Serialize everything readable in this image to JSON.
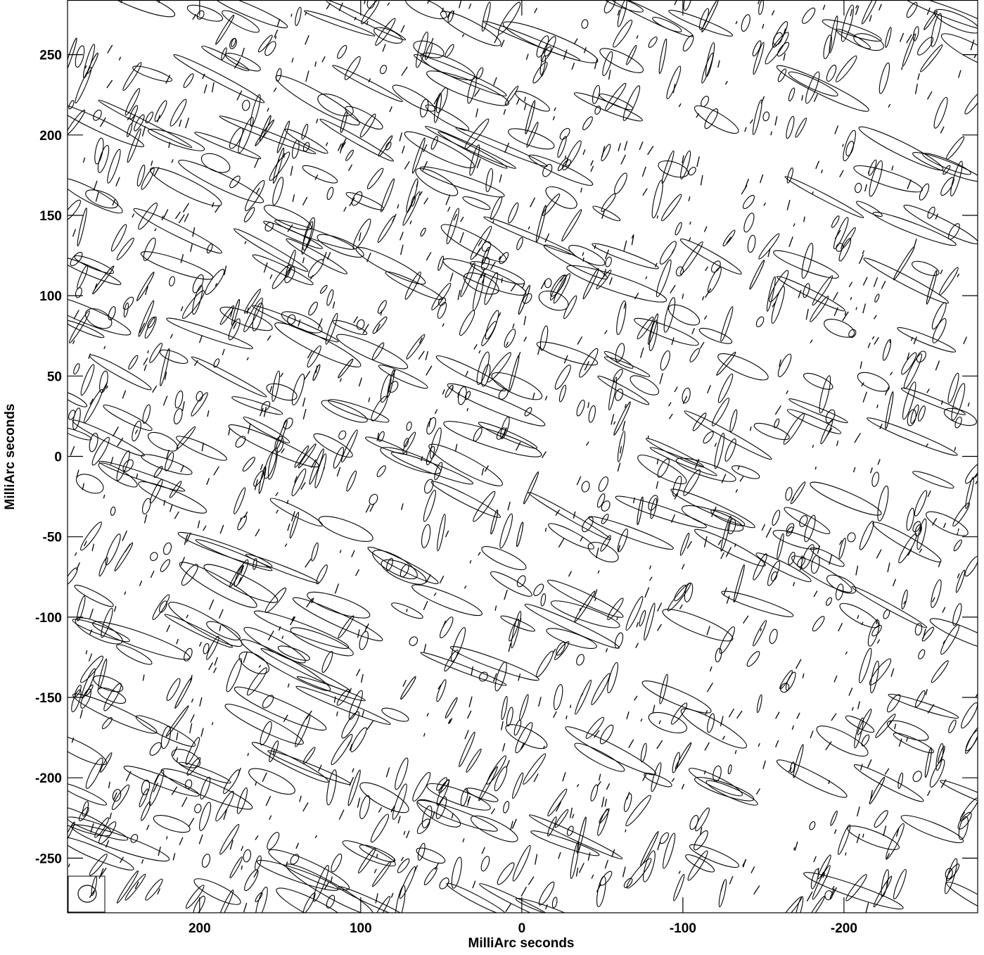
{
  "chart_data": {
    "type": "contour",
    "x_label": "MilliArc seconds",
    "y_label": "MilliArc seconds",
    "xlim": [
      282,
      -283
    ],
    "ylim": [
      -284,
      284
    ],
    "xticks": [
      200,
      100,
      0,
      -100,
      -200
    ],
    "yticks": [
      -250,
      -200,
      -150,
      -100,
      -50,
      0,
      50,
      100,
      150,
      200,
      250
    ],
    "color": "#000000"
  }
}
